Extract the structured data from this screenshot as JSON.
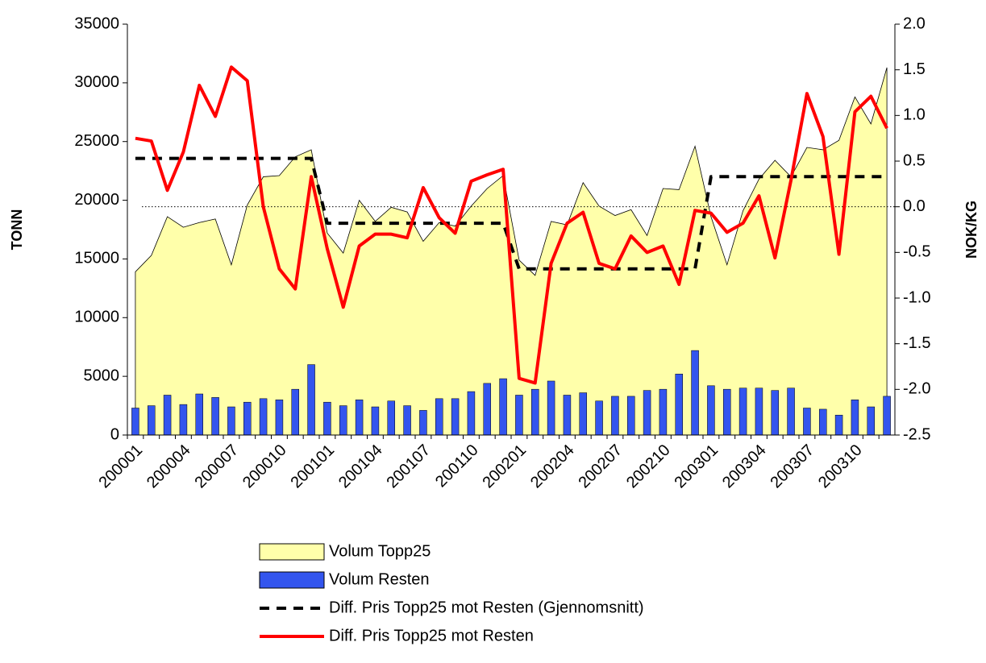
{
  "chart_data": {
    "type": "combo",
    "y_label": "TONN",
    "y2_label": "NOK/KG",
    "categories": [
      "200001",
      null,
      null,
      "200004",
      null,
      null,
      "200007",
      null,
      null,
      "200010",
      null,
      null,
      "200101",
      null,
      null,
      "200104",
      null,
      null,
      "200107",
      null,
      null,
      "200110",
      null,
      null,
      "200201",
      null,
      null,
      "200204",
      null,
      null,
      "200207",
      null,
      null,
      "200210",
      null,
      null,
      "200301",
      null,
      null,
      "200304",
      null,
      null,
      "200307",
      null,
      null,
      "200310",
      null,
      null
    ],
    "series": [
      {
        "name": "Volum Topp25",
        "type": "area",
        "color": "#ffffaa",
        "values": [
          13900,
          15300,
          18600,
          17700,
          18100,
          18400,
          14500,
          19600,
          22000,
          22100,
          23700,
          24300,
          17200,
          15500,
          20000,
          18200,
          19400,
          19000,
          16500,
          18100,
          17800,
          19500,
          21000,
          22100,
          14900,
          13600,
          18200,
          17900,
          21500,
          19500,
          18700,
          19200,
          17000,
          21000,
          20900,
          24600,
          18600,
          14500,
          19100,
          21800,
          23400,
          22000,
          24500,
          24300,
          25100,
          28800,
          26500,
          31300
        ]
      },
      {
        "name": "Volum Resten",
        "type": "bar",
        "color": "#3355ee",
        "values": [
          2300,
          2500,
          3400,
          2600,
          3500,
          3200,
          2400,
          2800,
          3100,
          3000,
          3900,
          6000,
          2800,
          2500,
          3000,
          2400,
          2900,
          2500,
          2100,
          3100,
          3100,
          3700,
          4400,
          4800,
          3400,
          3900,
          4600,
          3400,
          3600,
          2900,
          3300,
          3300,
          3800,
          3900,
          5200,
          7200,
          4200,
          3900,
          4000,
          4000,
          3800,
          4000,
          2300,
          2200,
          1700,
          3000,
          2400,
          3300
        ]
      },
      {
        "name": "Diff. Pris Topp25 mot Resten (Gjennomsnitt)",
        "type": "line",
        "dashed": true,
        "color": "#000000",
        "axis": "y2",
        "values": [
          0.53,
          0.53,
          0.53,
          0.53,
          0.53,
          0.53,
          0.53,
          0.53,
          0.53,
          0.53,
          0.53,
          0.53,
          -0.18,
          -0.18,
          -0.18,
          -0.18,
          -0.18,
          -0.18,
          -0.18,
          -0.18,
          -0.18,
          -0.18,
          -0.18,
          -0.18,
          -0.68,
          -0.68,
          -0.68,
          -0.68,
          -0.68,
          -0.68,
          -0.68,
          -0.68,
          -0.68,
          -0.68,
          -0.68,
          -0.68,
          0.33,
          0.33,
          0.33,
          0.33,
          0.33,
          0.33,
          0.33,
          0.33,
          0.33,
          0.33,
          0.33,
          0.33
        ]
      },
      {
        "name": "Diff. Pris Topp25 mot Resten",
        "type": "line",
        "dashed": false,
        "color": "#ff0000",
        "axis": "y2",
        "values": [
          0.75,
          0.72,
          0.18,
          0.6,
          1.33,
          0.99,
          1.53,
          1.38,
          0.0,
          -0.68,
          -0.9,
          0.33,
          -0.46,
          -1.1,
          -0.43,
          -0.3,
          -0.3,
          -0.34,
          0.21,
          -0.12,
          -0.29,
          0.28,
          0.35,
          0.41,
          -1.88,
          -1.93,
          -0.62,
          -0.18,
          -0.06,
          -0.62,
          -0.68,
          -0.32,
          -0.5,
          -0.43,
          -0.85,
          -0.04,
          -0.07,
          -0.28,
          -0.18,
          0.12,
          -0.56,
          0.29,
          1.24,
          0.77,
          -0.52,
          1.04,
          1.21,
          0.86
        ]
      }
    ],
    "ylim": [
      0,
      35000
    ],
    "yticks": [
      0,
      5000,
      10000,
      15000,
      20000,
      25000,
      30000,
      35000
    ],
    "y2lim": [
      -2.5,
      2.0
    ],
    "y2ticks": [
      -2.5,
      {
        "value": -2.0,
        "label": "-2.0"
      },
      -1.5,
      {
        "value": -1.0,
        "label": "-1.0"
      },
      -0.5,
      {
        "value": 0,
        "label": "0.0"
      },
      0.5,
      {
        "value": 1.0,
        "label": "1.0"
      },
      1.5,
      {
        "value": 2.0,
        "label": "2.0"
      }
    ],
    "zero_line": true,
    "legend": "bottom"
  }
}
